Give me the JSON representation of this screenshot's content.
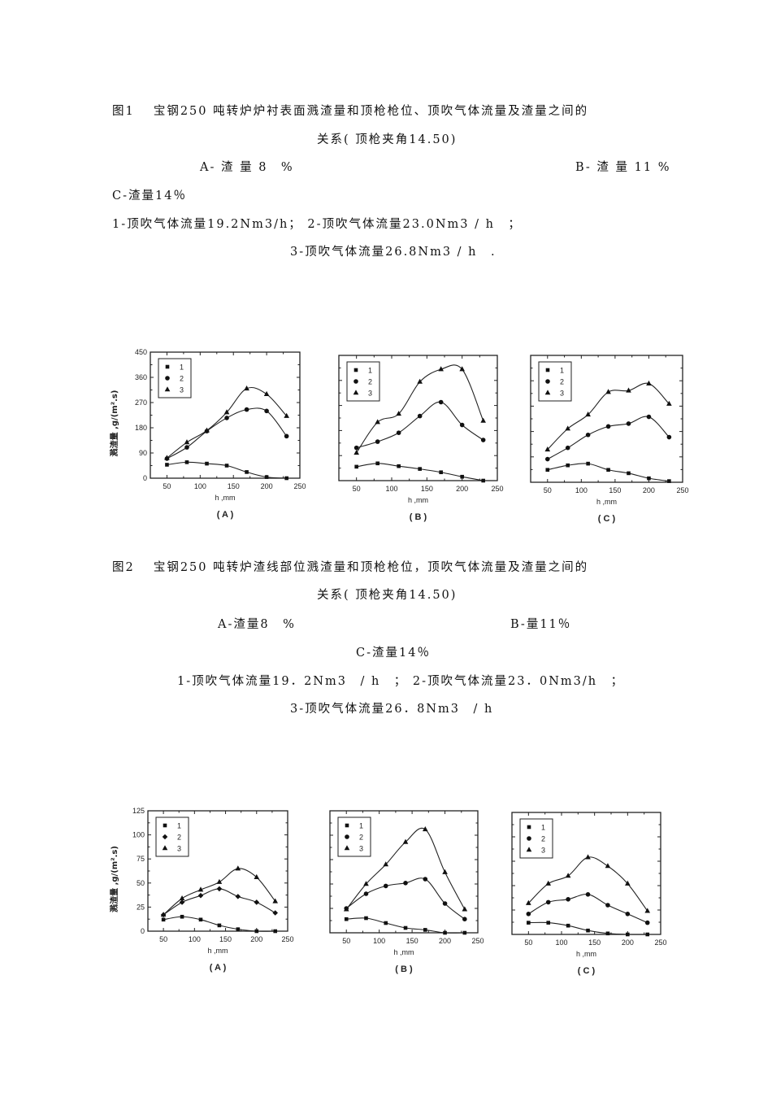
{
  "figure1": {
    "title_line1": "图1　 宝钢250 吨转炉炉衬表面溅渣量和顶枪枪位、顶吹气体流量及渣量之间的",
    "title_line2": "关系( 顶枪夹角14.50)",
    "label_a": "A- 渣 量 8　%",
    "label_b": "B- 渣 量 11 %",
    "label_c": "C-渣量14％",
    "flow_line1": "1-顶吹气体流量19.2Nm3/h； 2-顶吹气体流量23.0Nm3 / h　；",
    "flow_line2": "3-顶吹气体流量26.8Nm3 / h　."
  },
  "figure2": {
    "title_line1": "图2　 宝钢250 吨转炉渣线部位溅渣量和顶枪枪位，顶吹气体流量及渣量之间的",
    "title_line2": "关系( 顶枪夹角14.50)",
    "label_a": "A-渣量8　%",
    "label_b": "B-量11％",
    "label_c": "C-渣量14％",
    "flow_line1": "1-顶吹气体流量19．2Nm3　/ h　； 2-顶吹气体流量23．0Nm3/h　；",
    "flow_line2": "3-顶吹气体流量26．8Nm3　/ h"
  },
  "chart_data": [
    {
      "id": "fig1-A",
      "type": "line",
      "title": "(A)",
      "xlabel": "h ,mm",
      "ylabel": "溅渣量 ,g/(m².s)",
      "xlim": [
        25,
        250
      ],
      "ylim": [
        0,
        450
      ],
      "xticks": [
        50,
        100,
        150,
        200,
        250
      ],
      "yticks": [
        0,
        90,
        180,
        270,
        360,
        450
      ],
      "show_yticklabels": true,
      "legend": [
        "1",
        "2",
        "3"
      ],
      "legend_position": "upper-left",
      "x": [
        50,
        80,
        110,
        140,
        170,
        200,
        230
      ],
      "series": [
        {
          "name": "1",
          "marker": "square",
          "values": [
            48,
            57,
            52,
            45,
            22,
            4,
            0
          ]
        },
        {
          "name": "2",
          "marker": "circle",
          "values": [
            70,
            110,
            168,
            215,
            245,
            240,
            150
          ]
        },
        {
          "name": "3",
          "marker": "triangle",
          "values": [
            72,
            128,
            170,
            235,
            320,
            300,
            222
          ]
        }
      ]
    },
    {
      "id": "fig1-B",
      "type": "line",
      "title": "(B)",
      "xlabel": "h ,mm",
      "ylabel": "",
      "xlim": [
        25,
        250
      ],
      "ylim": [
        0,
        450
      ],
      "xticks": [
        50,
        100,
        150,
        200,
        250
      ],
      "yticks": [
        0,
        90,
        180,
        270,
        360,
        450
      ],
      "show_yticklabels": false,
      "legend": [
        "1",
        "2",
        "3"
      ],
      "legend_position": "upper-left",
      "x": [
        50,
        80,
        110,
        140,
        170,
        200,
        230
      ],
      "series": [
        {
          "name": "1",
          "marker": "square",
          "values": [
            50,
            62,
            52,
            42,
            30,
            14,
            0
          ]
        },
        {
          "name": "2",
          "marker": "circle",
          "values": [
            118,
            140,
            172,
            232,
            282,
            200,
            146
          ]
        },
        {
          "name": "3",
          "marker": "triangle",
          "values": [
            100,
            210,
            240,
            355,
            400,
            400,
            215
          ]
        }
      ]
    },
    {
      "id": "fig1-C",
      "type": "line",
      "title": "(C)",
      "xlabel": "h ,mm",
      "ylabel": "",
      "xlim": [
        25,
        250
      ],
      "ylim": [
        0,
        450
      ],
      "xticks": [
        50,
        100,
        150,
        200,
        250
      ],
      "yticks": [
        0,
        90,
        180,
        270,
        360,
        450
      ],
      "show_yticklabels": false,
      "legend": [
        "1",
        "2",
        "3"
      ],
      "legend_position": "upper-left",
      "x": [
        50,
        80,
        110,
        140,
        170,
        200,
        230
      ],
      "series": [
        {
          "name": "1",
          "marker": "square",
          "values": [
            44,
            60,
            66,
            44,
            32,
            14,
            4
          ]
        },
        {
          "name": "2",
          "marker": "circle",
          "values": [
            82,
            122,
            168,
            198,
            208,
            232,
            160
          ]
        },
        {
          "name": "3",
          "marker": "triangle",
          "values": [
            116,
            190,
            240,
            320,
            325,
            350,
            278
          ]
        }
      ]
    },
    {
      "id": "fig2-A",
      "type": "line",
      "title": "(A)",
      "xlabel": "h ,mm",
      "ylabel": "溅渣量 ,g/(m².s)",
      "xlim": [
        25,
        250
      ],
      "ylim": [
        0,
        125
      ],
      "xticks": [
        50,
        100,
        150,
        200,
        250
      ],
      "yticks": [
        0,
        25,
        50,
        75,
        100,
        125
      ],
      "show_yticklabels": true,
      "legend": [
        "1",
        "2",
        "3"
      ],
      "legend_position": "upper-left",
      "x": [
        50,
        80,
        110,
        140,
        170,
        200,
        230
      ],
      "series": [
        {
          "name": "1",
          "marker": "square",
          "values": [
            12,
            15,
            12,
            6,
            2,
            0,
            0
          ]
        },
        {
          "name": "2",
          "marker": "diamond",
          "values": [
            17,
            30,
            37,
            44,
            36,
            30,
            19
          ]
        },
        {
          "name": "3",
          "marker": "triangle",
          "values": [
            17,
            34,
            43,
            51,
            65,
            56,
            31
          ]
        }
      ]
    },
    {
      "id": "fig2-B",
      "type": "line",
      "title": "(B)",
      "xlabel": "h ,mm",
      "ylabel": "",
      "xlim": [
        25,
        250
      ],
      "ylim": [
        0,
        125
      ],
      "xticks": [
        50,
        100,
        150,
        200,
        250
      ],
      "yticks": [
        0,
        25,
        50,
        75,
        100,
        125
      ],
      "show_yticklabels": false,
      "legend": [
        "1",
        "2",
        "3"
      ],
      "legend_position": "upper-left",
      "x": [
        50,
        80,
        110,
        140,
        170,
        200,
        230
      ],
      "series": [
        {
          "name": "1",
          "marker": "square",
          "values": [
            14,
            15,
            10,
            5,
            3,
            0,
            0
          ]
        },
        {
          "name": "2",
          "marker": "circle",
          "values": [
            25,
            40,
            48,
            51,
            55,
            30,
            14
          ]
        },
        {
          "name": "3",
          "marker": "triangle",
          "values": [
            24,
            50,
            70,
            93,
            106,
            62,
            24
          ]
        }
      ]
    },
    {
      "id": "fig2-C",
      "type": "line",
      "title": "(C)",
      "xlabel": "h ,mm",
      "ylabel": "",
      "xlim": [
        25,
        250
      ],
      "ylim": [
        0,
        125
      ],
      "xticks": [
        50,
        100,
        150,
        200,
        250
      ],
      "yticks": [
        0,
        25,
        50,
        75,
        100,
        125
      ],
      "show_yticklabels": false,
      "legend": [
        "1",
        "2",
        "3"
      ],
      "legend_position": "upper-left",
      "x": [
        50,
        80,
        110,
        140,
        170,
        200,
        230
      ],
      "series": [
        {
          "name": "1",
          "marker": "square",
          "values": [
            12,
            12,
            9,
            4,
            1,
            0,
            0
          ]
        },
        {
          "name": "2",
          "marker": "circle",
          "values": [
            21,
            33,
            36,
            41,
            30,
            21,
            12
          ]
        },
        {
          "name": "3",
          "marker": "triangle",
          "values": [
            32,
            52,
            60,
            79,
            70,
            52,
            24
          ]
        }
      ]
    }
  ]
}
